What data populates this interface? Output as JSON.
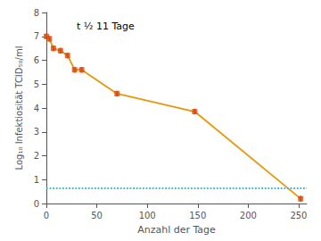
{
  "chart_data": {
    "type": "line",
    "x": [
      0,
      3,
      7,
      14,
      21,
      28,
      35,
      70,
      147,
      252
    ],
    "series": [
      {
        "type": "line",
        "color": "#E8960A",
        "values": [
          7.0,
          6.9,
          6.5,
          6.4,
          6.2,
          5.6,
          5.6,
          4.6,
          3.85,
          0.2
        ]
      },
      {
        "type": "errorbar",
        "color": "#D94F10",
        "marker": "square",
        "values": [
          7.0,
          6.9,
          6.5,
          6.4,
          6.2,
          5.6,
          5.6,
          4.6,
          3.85,
          0.2
        ],
        "yerr": [
          0.12,
          0.12,
          0.12,
          0.12,
          0.12,
          0.12,
          0.12,
          0.12,
          0.12,
          0.12
        ]
      }
    ],
    "hline": {
      "y": 0.65,
      "color": "#45B8D0",
      "line_style": "dotted"
    },
    "annotation": {
      "text": "t ½ 11 Tage",
      "x": 30,
      "y": 7.2
    },
    "xlabel": "Anzahl der Tage",
    "ylabel": "Log₁₀ Infektiosität TCID₅₀/ml",
    "xlim": [
      0,
      258
    ],
    "ylim": [
      0,
      8
    ],
    "xticks": [
      0,
      50,
      100,
      150,
      200,
      250
    ],
    "yticks": [
      0,
      1,
      2,
      3,
      4,
      5,
      6,
      7,
      8
    ],
    "grid": false
  }
}
